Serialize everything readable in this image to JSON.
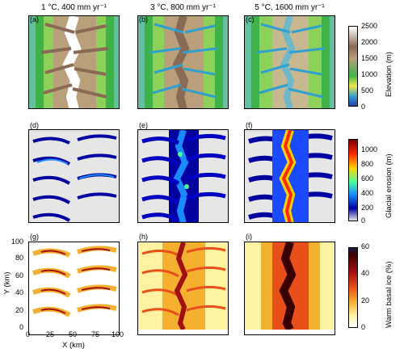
{
  "columns": [
    {
      "title": "1 °C, 400 mm yr⁻¹"
    },
    {
      "title": "3 °C, 800 mm yr⁻¹"
    },
    {
      "title": "5 °C, 1600 mm yr⁻¹"
    }
  ],
  "panel_labels": [
    "(a)",
    "(b)",
    "(c)",
    "(d)",
    "(e)",
    "(f)",
    "(g)",
    "(h)",
    "(i)"
  ],
  "colorbars": [
    {
      "label": "Elevation (m)",
      "ticks": [
        "2500",
        "2000",
        "1500",
        "1000",
        "500",
        "0"
      ],
      "colors": [
        "#ffffff",
        "#8b6a55",
        "#b9a07a",
        "#3fb34a",
        "#f2e64a",
        "#2b3fa8"
      ],
      "extend": "both"
    },
    {
      "label": "Glacial erosion (m)",
      "ticks": [
        "1000",
        "800",
        "600",
        "400",
        "200",
        "0"
      ],
      "colors": [
        "#7a0000",
        "#ff2a00",
        "#ffd200",
        "#4cff9a",
        "#1a4bff",
        "#0000a0",
        "#e6e6e6"
      ],
      "extend": "max"
    },
    {
      "label": "Warm basal ice (%)",
      "ticks": [
        "60",
        "40",
        "20",
        "0"
      ],
      "colors": [
        "#3a0000",
        "#a01010",
        "#e8501a",
        "#f5b030",
        "#fff2a0",
        "#ffffff"
      ],
      "extend": "max"
    }
  ],
  "axes": {
    "xlabel": "X (km)",
    "ylabel": "Y (km)",
    "xticks": [
      "0",
      "25",
      "50",
      "75",
      "100"
    ],
    "yticks": [
      "100",
      "80",
      "60",
      "40",
      "20",
      "0"
    ]
  },
  "chart_data": {
    "type": "heatmap",
    "rows": [
      "Elevation (m)",
      "Glacial erosion (m)",
      "Warm basal ice (%)"
    ],
    "columns": [
      "1 °C, 400 mm yr⁻¹",
      "3 °C, 800 mm yr⁻¹",
      "5 °C, 1600 mm yr⁻¹"
    ],
    "x_range": [
      0,
      100
    ],
    "y_range": [
      0,
      100
    ],
    "elevation_range": [
      0,
      2500
    ],
    "erosion_range": [
      0,
      1000
    ],
    "warm_basal_ice_range": [
      0,
      60
    ]
  }
}
